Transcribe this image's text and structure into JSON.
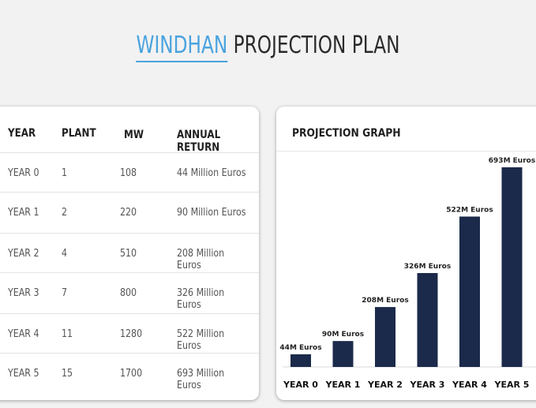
{
  "title": {
    "brand": "WINDHAN",
    "rest": " PROJECTION PLAN"
  },
  "table": {
    "headers": [
      "YEAR",
      "PLANT",
      "MW",
      "ANNUAL RETURN"
    ],
    "rows": [
      [
        "YEAR 0",
        "1",
        "108",
        "44 Million Euros"
      ],
      [
        "YEAR 1",
        "2",
        "220",
        "90 Million Euros"
      ],
      [
        "YEAR 2",
        "4",
        "510",
        "208 Million Euros"
      ],
      [
        "YEAR 3",
        "7",
        "800",
        "326 Million Euros"
      ],
      [
        "YEAR 4",
        "11",
        "1280",
        "522 Million Euros"
      ],
      [
        "YEAR 5",
        "15",
        "1700",
        "693 Million Euros"
      ]
    ]
  },
  "graph_title": "PROJECTION GRAPH",
  "chart_data": {
    "type": "bar",
    "title": "PROJECTION GRAPH",
    "categories": [
      "YEAR 0",
      "YEAR 1",
      "YEAR 2",
      "YEAR 3",
      "YEAR 4",
      "YEAR 5"
    ],
    "values": [
      44,
      90,
      208,
      326,
      522,
      693
    ],
    "data_labels": [
      "44M Euros",
      "90M Euros",
      "208M Euros",
      "326M Euros",
      "522M Euros",
      "693M Euros"
    ],
    "unit": "M Euros",
    "bar_color": "#1b2a4a",
    "grid": false,
    "legend": "none"
  },
  "colors": {
    "brand": "#4aa3df",
    "bar": "#1b2a4a"
  }
}
